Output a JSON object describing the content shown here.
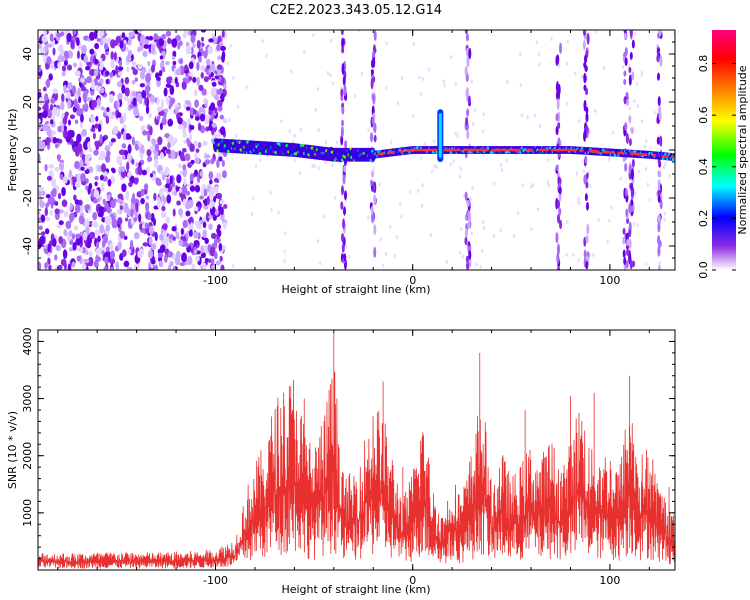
{
  "title": "C2E2.2023.343.05.12.G14",
  "colors": {
    "snr_line": "#e8302f",
    "spectrogram_low": "#d8c8ff",
    "spectrogram_mid": "#7a1fe8",
    "spectrogram_high": "#ff2a2a"
  },
  "chart_data": [
    {
      "type": "heatmap",
      "title": "C2E2.2023.343.05.12.G14",
      "xlabel": "Height of straight line (km)",
      "ylabel": "Frequency (Hz)",
      "xlim": [
        -190,
        133
      ],
      "ylim": [
        -50,
        50
      ],
      "x_ticks": [
        -100,
        0,
        100
      ],
      "y_ticks": [
        -40,
        -20,
        0,
        20,
        40
      ],
      "colorbar": {
        "label": "Normalized spectral amplitude",
        "range": [
          0,
          0.93
        ],
        "ticks": [
          "0.0",
          "0.2",
          "0.4",
          "0.6",
          "0.8"
        ],
        "colormap": [
          "#ffffff",
          "#8a2be2",
          "#0000ff",
          "#00ffff",
          "#00ff00",
          "#ffff00",
          "#ff8000",
          "#ff0000",
          "#ff0080"
        ]
      },
      "signal_track": {
        "x": [
          -100,
          -80,
          -60,
          -40,
          -20,
          0,
          20,
          40,
          60,
          80,
          100,
          120,
          133
        ],
        "frequency": [
          2,
          1,
          0,
          -2,
          -2,
          0,
          0,
          0,
          0,
          0,
          -1,
          -2,
          -3
        ]
      },
      "spike": {
        "x": 14,
        "frequency_range": [
          -5,
          17
        ]
      },
      "vertical_stripes_x": [
        -35,
        -20,
        28,
        74,
        88,
        108,
        111,
        125
      ]
    },
    {
      "type": "line",
      "xlabel": "Height of straight line (km)",
      "ylabel": "SNR (10 * v/v)",
      "xlim": [
        -190,
        133
      ],
      "ylim": [
        0,
        4200
      ],
      "x_ticks": [
        -100,
        0,
        100
      ],
      "y_ticks": [
        1000,
        2000,
        3000,
        4000
      ],
      "series": [
        {
          "x": [
            -190,
            -170,
            -150,
            -130,
            -110,
            -100,
            -90,
            -85,
            -80,
            -75,
            -70,
            -65,
            -60,
            -55,
            -50,
            -45,
            -40,
            -35,
            -30,
            -25,
            -20,
            -15,
            -10,
            -5,
            0,
            5,
            10,
            15,
            20,
            25,
            30,
            35,
            40,
            45,
            50,
            55,
            60,
            65,
            70,
            75,
            80,
            85,
            90,
            95,
            100,
            105,
            110,
            115,
            120,
            125,
            130,
            133
          ],
          "values": [
            250,
            240,
            260,
            250,
            270,
            300,
            450,
            1100,
            1500,
            1800,
            2400,
            2600,
            2800,
            2100,
            1800,
            2200,
            3000,
            1300,
            1400,
            1800,
            2400,
            2200,
            1600,
            1000,
            1400,
            2300,
            1200,
            800,
            1300,
            1100,
            1700,
            2600,
            1200,
            1700,
            1300,
            1500,
            1800,
            1600,
            1900,
            1500,
            1800,
            2500,
            1700,
            1700,
            1700,
            1500,
            2500,
            1600,
            1800,
            1200,
            1000,
            700
          ],
          "peaks": [
            [
              -55,
              3000
            ],
            [
              -40,
              4150
            ],
            [
              -15,
              3300
            ],
            [
              -5,
              1800
            ],
            [
              34,
              3800
            ],
            [
              57,
              2800
            ],
            [
              80,
              3050
            ],
            [
              92,
              3100
            ],
            [
              110,
              3400
            ],
            [
              130,
              1450
            ]
          ]
        }
      ]
    }
  ]
}
